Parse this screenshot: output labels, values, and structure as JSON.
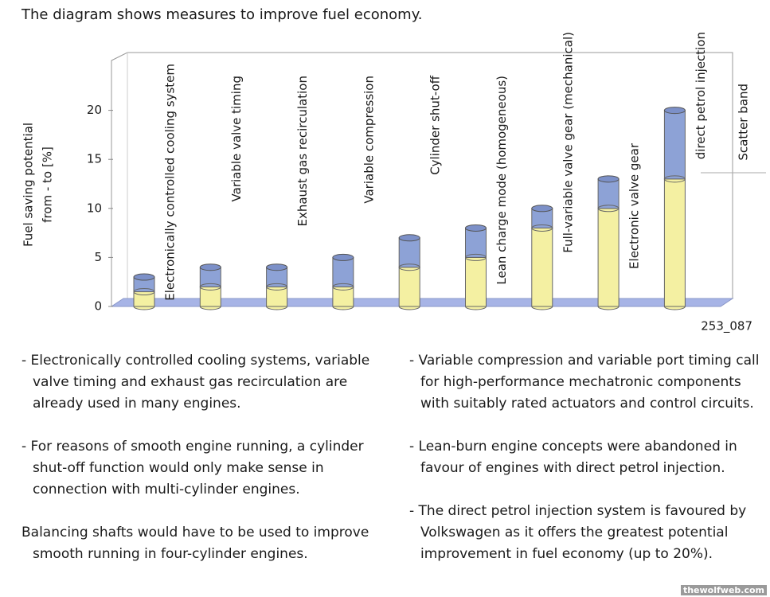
{
  "intro": "The diagram shows measures to improve fuel economy.",
  "chart_data": {
    "type": "range-bar",
    "ylabel": [
      "Fuel saving potential",
      "from - to [%]"
    ],
    "categories": [
      "Electronically controlled cooling system",
      "Variable valve timing",
      "Exhaust gas recirculation",
      "Variable compression",
      "Cylinder shut-off",
      "Lean charge mode (homogeneous)",
      "Full-variable valve gear (mechanical)",
      "Electronic valve gear",
      "direct petrol injection"
    ],
    "ranges": [
      [
        1.5,
        3
      ],
      [
        2,
        4
      ],
      [
        2,
        4
      ],
      [
        2,
        5
      ],
      [
        4,
        7
      ],
      [
        5,
        8
      ],
      [
        8,
        10
      ],
      [
        10,
        13
      ],
      [
        13,
        20
      ]
    ],
    "colors": [
      "#f4f0a2",
      "#8da2d6"
    ],
    "annotation": "Scatter band",
    "ylim": [
      0,
      25
    ],
    "yticks": [
      0,
      5,
      10,
      15,
      20
    ]
  },
  "figure_id": "253_087",
  "left": [
    "- Electronically controlled cooling systems, variable valve timing and exhaust gas recirculation are already used in many engines.",
    "- For reasons of smooth engine running, a cylinder shut-off function would only make sense in connection with multi-cylinder engines.",
    "Balancing shafts would have to be used to improve smooth running in four-cylinder engines."
  ],
  "right": [
    "- Variable compression and variable port timing call for high-performance mechatronic components with suitably rated actuators and control circuits.",
    "- Lean-burn engine concepts were abandoned in favour of engines with direct petrol injection.",
    "- The direct petrol injection system is favoured by Volkswagen as it offers the greatest potential improvement in fuel economy (up to 20%)."
  ],
  "watermark": "thewolfweb.com"
}
